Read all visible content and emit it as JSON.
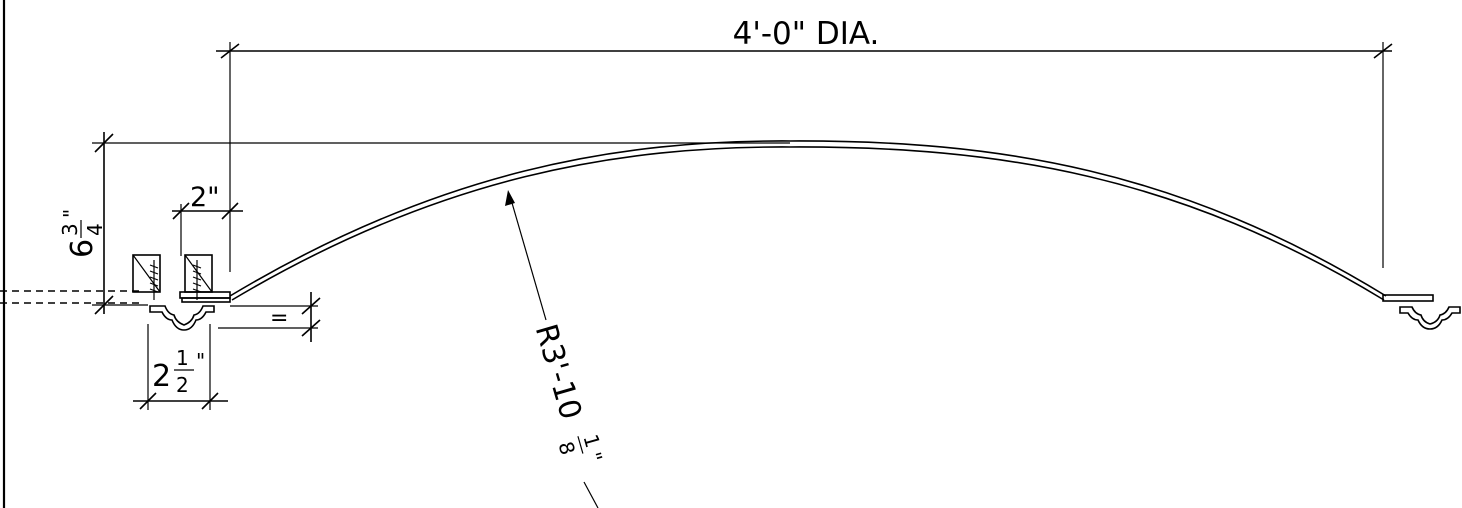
{
  "drawing": {
    "overall_dimension": "4'-0\" DIA.",
    "rise_whole": "6",
    "rise_num": "3",
    "rise_den": "4",
    "rise_unit": "\"",
    "offset_dimension": "2\"",
    "flange_whole": "2",
    "flange_num": "1",
    "flange_den": "2",
    "flange_unit": "\"",
    "small_gap": "=",
    "radius_prefix": "R3'-10",
    "radius_num": "1",
    "radius_den": "8",
    "radius_unit": "\""
  }
}
